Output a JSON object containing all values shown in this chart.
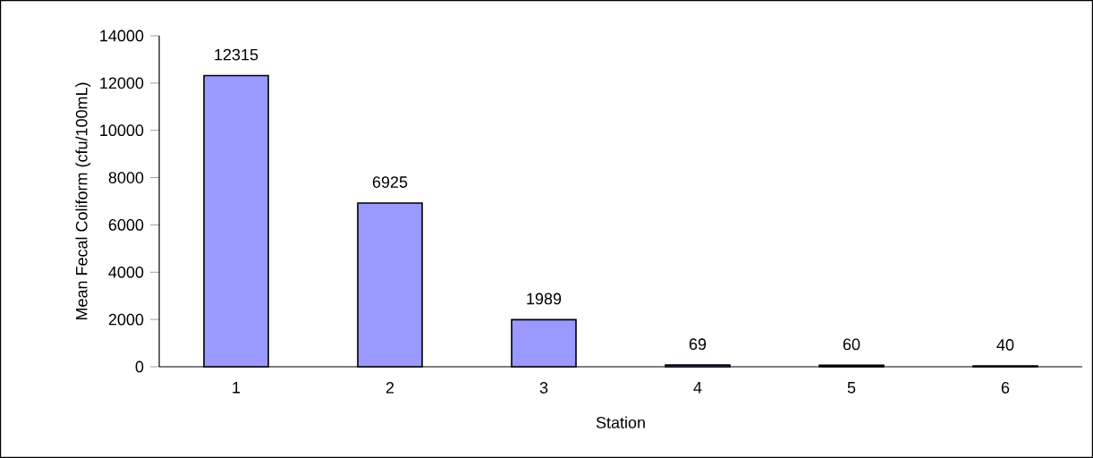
{
  "chart_data": {
    "type": "bar",
    "xlabel": "Station",
    "ylabel": "Mean Fecal Coliform (cfu/100mL)",
    "categories": [
      "1",
      "2",
      "3",
      "4",
      "5",
      "6"
    ],
    "values": [
      12315,
      6925,
      1989,
      69,
      60,
      40
    ],
    "color": "#9999ff",
    "ylim": [
      0,
      14000
    ],
    "yticks": [
      0,
      2000,
      4000,
      6000,
      8000,
      10000,
      12000,
      14000
    ],
    "data_labels": true,
    "grid": false
  }
}
